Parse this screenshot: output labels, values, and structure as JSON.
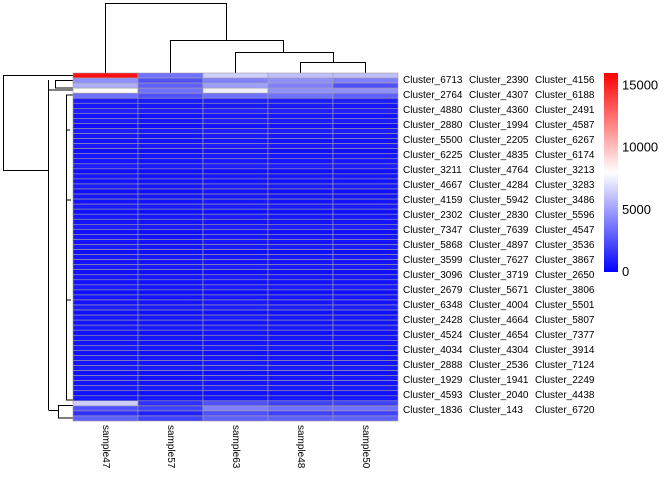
{
  "chart_data": {
    "type": "heatmap",
    "title": "",
    "columns": [
      "sample47",
      "sample57",
      "sample63",
      "sample48",
      "sample50"
    ],
    "rows": [
      "Cluster_6713",
      "Cluster_2764",
      "Cluster_4880",
      "Cluster_2880",
      "Cluster_5500",
      "Cluster_6225",
      "Cluster_3211",
      "Cluster_4667",
      "Cluster_4159",
      "Cluster_2302",
      "Cluster_7347",
      "Cluster_5868",
      "Cluster_3599",
      "Cluster_3096",
      "Cluster_2679",
      "Cluster_6348",
      "Cluster_2428",
      "Cluster_4524",
      "Cluster_4034",
      "Cluster_2888",
      "Cluster_1929",
      "Cluster_4593",
      "Cluster_1836",
      "Cluster_2390",
      "Cluster_4307",
      "Cluster_4360",
      "Cluster_1994",
      "Cluster_2205",
      "Cluster_4835",
      "Cluster_4764",
      "Cluster_4284",
      "Cluster_5942",
      "Cluster_2830",
      "Cluster_7639",
      "Cluster_4897",
      "Cluster_7627",
      "Cluster_3719",
      "Cluster_5671",
      "Cluster_4004",
      "Cluster_4664",
      "Cluster_4654",
      "Cluster_4304",
      "Cluster_2536",
      "Cluster_1941",
      "Cluster_2040",
      "Cluster_143",
      "Cluster_4156",
      "Cluster_6188",
      "Cluster_2491",
      "Cluster_4587",
      "Cluster_6267",
      "Cluster_6174",
      "Cluster_3213",
      "Cluster_3283",
      "Cluster_3486",
      "Cluster_5596",
      "Cluster_4547",
      "Cluster_3536",
      "Cluster_3867",
      "Cluster_2650",
      "Cluster_3806",
      "Cluster_5501",
      "Cluster_5807",
      "Cluster_7377",
      "Cluster_3914",
      "Cluster_7124",
      "Cluster_2249",
      "Cluster_4438",
      "Cluster_6720"
    ],
    "values": [
      [
        15500,
        3500,
        6500,
        6000,
        6000
      ],
      [
        4500,
        2500,
        4000,
        4500,
        4000
      ],
      [
        5500,
        3000,
        5000,
        4000,
        2500
      ],
      [
        8000,
        3500,
        7500,
        4500,
        4500
      ],
      [
        3500,
        2500,
        3500,
        3500,
        3000
      ],
      [
        900,
        800,
        1000,
        900,
        900
      ],
      [
        700,
        700,
        800,
        800,
        700
      ],
      [
        1000,
        900,
        1100,
        1000,
        1000
      ],
      [
        600,
        600,
        700,
        700,
        600
      ],
      [
        800,
        700,
        900,
        800,
        800
      ],
      [
        500,
        500,
        600,
        600,
        500
      ],
      [
        900,
        800,
        900,
        900,
        900
      ],
      [
        700,
        600,
        800,
        700,
        700
      ],
      [
        600,
        600,
        700,
        600,
        600
      ],
      [
        800,
        800,
        900,
        800,
        800
      ],
      [
        500,
        500,
        600,
        500,
        500
      ],
      [
        700,
        700,
        800,
        700,
        700
      ],
      [
        600,
        600,
        700,
        600,
        700
      ],
      [
        900,
        800,
        1000,
        900,
        900
      ],
      [
        500,
        500,
        500,
        500,
        500
      ],
      [
        700,
        600,
        700,
        700,
        700
      ],
      [
        600,
        600,
        600,
        600,
        600
      ],
      [
        800,
        700,
        800,
        800,
        800
      ],
      [
        500,
        500,
        600,
        500,
        500
      ],
      [
        700,
        700,
        700,
        700,
        700
      ],
      [
        600,
        600,
        700,
        600,
        600
      ],
      [
        800,
        800,
        800,
        800,
        800
      ],
      [
        500,
        500,
        500,
        500,
        500
      ],
      [
        700,
        700,
        800,
        700,
        700
      ],
      [
        600,
        600,
        600,
        600,
        600
      ],
      [
        900,
        800,
        900,
        900,
        900
      ],
      [
        500,
        500,
        600,
        500,
        500
      ],
      [
        700,
        600,
        700,
        700,
        700
      ],
      [
        600,
        600,
        700,
        600,
        600
      ],
      [
        800,
        700,
        800,
        800,
        800
      ],
      [
        500,
        500,
        500,
        500,
        500
      ],
      [
        700,
        700,
        700,
        700,
        700
      ],
      [
        600,
        600,
        600,
        600,
        600
      ],
      [
        800,
        800,
        900,
        800,
        800
      ],
      [
        500,
        500,
        500,
        500,
        500
      ],
      [
        700,
        700,
        800,
        700,
        700
      ],
      [
        600,
        600,
        600,
        600,
        600
      ],
      [
        800,
        700,
        800,
        800,
        800
      ],
      [
        500,
        500,
        500,
        500,
        500
      ],
      [
        700,
        600,
        700,
        700,
        700
      ],
      [
        600,
        600,
        700,
        600,
        600
      ],
      [
        900,
        800,
        900,
        900,
        900
      ],
      [
        500,
        500,
        500,
        500,
        500
      ],
      [
        700,
        700,
        800,
        700,
        700
      ],
      [
        600,
        600,
        600,
        600,
        600
      ],
      [
        800,
        800,
        800,
        800,
        800
      ],
      [
        500,
        500,
        600,
        500,
        500
      ],
      [
        700,
        700,
        700,
        700,
        700
      ],
      [
        600,
        600,
        600,
        600,
        600
      ],
      [
        800,
        700,
        800,
        800,
        800
      ],
      [
        500,
        500,
        500,
        500,
        500
      ],
      [
        700,
        700,
        700,
        700,
        700
      ],
      [
        600,
        600,
        700,
        600,
        600
      ],
      [
        800,
        800,
        800,
        800,
        800
      ],
      [
        500,
        500,
        500,
        500,
        500
      ],
      [
        700,
        600,
        700,
        700,
        700
      ],
      [
        600,
        600,
        600,
        600,
        600
      ],
      [
        800,
        800,
        900,
        800,
        800
      ],
      [
        500,
        500,
        500,
        500,
        500
      ],
      [
        700,
        700,
        700,
        700,
        700
      ],
      [
        6500,
        1500,
        2500,
        2000,
        2000
      ],
      [
        2500,
        2000,
        4000,
        3500,
        3500
      ],
      [
        1500,
        1000,
        2500,
        2000,
        2000
      ],
      [
        3000,
        2000,
        3000,
        3000,
        3000
      ]
    ],
    "color_scale": {
      "low": "#0000FF",
      "mid": "#FFFFFF",
      "high": "#FF0000",
      "range": [
        0,
        16000
      ]
    },
    "legend": {
      "ticks": [
        0,
        5000,
        10000,
        15000
      ],
      "placement": "right"
    },
    "row_dendrogram": true,
    "column_dendrogram": true
  }
}
